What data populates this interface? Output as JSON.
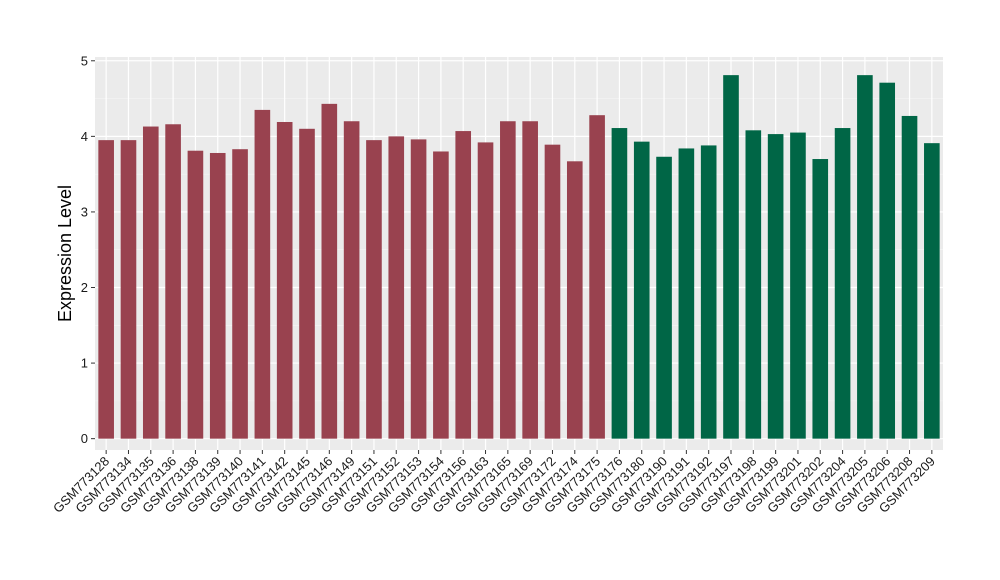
{
  "chart_data": {
    "type": "bar",
    "title": "",
    "xlabel": "",
    "ylabel": "Expression Level",
    "ylim": [
      -0.15,
      5.05
    ],
    "yticks": [
      0,
      1,
      2,
      3,
      4,
      5
    ],
    "grid": true,
    "panel_background": "#EBEBEB",
    "categories": [
      "GSM773128",
      "GSM773134",
      "GSM773135",
      "GSM773136",
      "GSM773138",
      "GSM773139",
      "GSM773140",
      "GSM773141",
      "GSM773142",
      "GSM773145",
      "GSM773146",
      "GSM773149",
      "GSM773151",
      "GSM773152",
      "GSM773153",
      "GSM773154",
      "GSM773156",
      "GSM773163",
      "GSM773165",
      "GSM773169",
      "GSM773172",
      "GSM773174",
      "GSM773175",
      "GSM773176",
      "GSM773180",
      "GSM773190",
      "GSM773191",
      "GSM773192",
      "GSM773197",
      "GSM773198",
      "GSM773199",
      "GSM773201",
      "GSM773202",
      "GSM773204",
      "GSM773205",
      "GSM773206",
      "GSM773208",
      "GSM773209"
    ],
    "values": [
      3.95,
      3.95,
      4.13,
      4.16,
      3.81,
      3.78,
      3.83,
      4.35,
      4.19,
      4.1,
      4.43,
      4.2,
      3.95,
      4.0,
      3.96,
      3.8,
      4.07,
      3.92,
      4.2,
      4.2,
      3.89,
      3.67,
      4.28,
      4.11,
      3.93,
      3.73,
      3.84,
      3.88,
      4.81,
      4.08,
      4.03,
      4.05,
      3.7,
      4.11,
      4.81,
      4.71,
      4.27,
      3.91
    ],
    "group_colors": [
      "#99424F",
      "#006646"
    ],
    "group_sizes": [
      23,
      15
    ]
  }
}
